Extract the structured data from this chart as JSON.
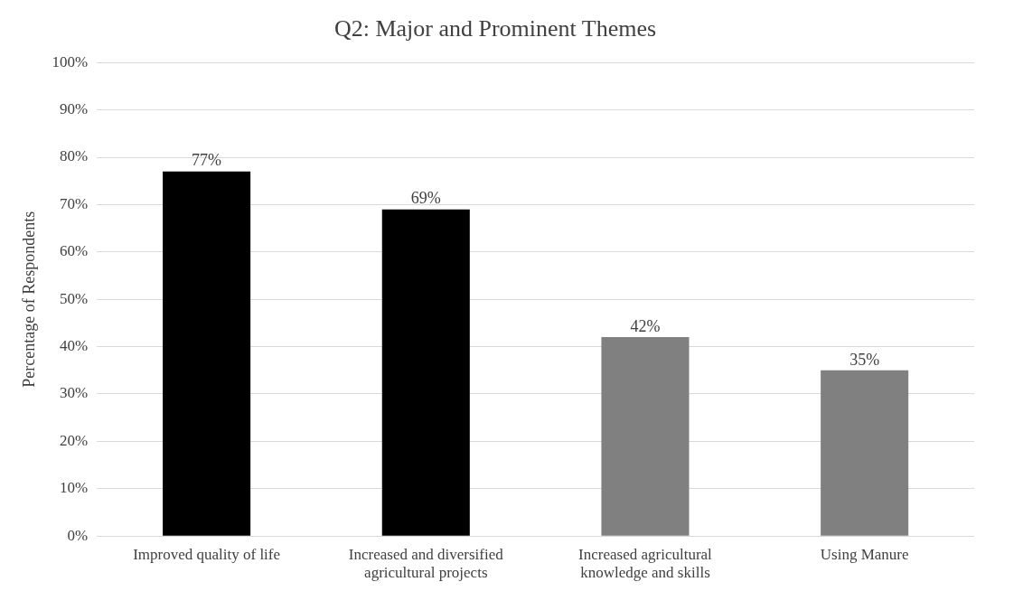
{
  "chart_data": {
    "type": "bar",
    "title": "Q2: Major and Prominent Themes",
    "ylabel": "Percentage of Respondents",
    "categories": [
      "Improved quality of life",
      "Increased and diversified agricultural projects",
      "Increased agricultural knowledge and skills",
      "Using Manure"
    ],
    "values": [
      77,
      69,
      42,
      35
    ],
    "colors": [
      "#000000",
      "#000000",
      "#808080",
      "#808080"
    ],
    "ylim": [
      0,
      100
    ],
    "yticks": [
      {
        "value": 0,
        "label": "0%"
      },
      {
        "value": 10,
        "label": "10%"
      },
      {
        "value": 20,
        "label": "20%"
      },
      {
        "value": 30,
        "label": "30%"
      },
      {
        "value": 40,
        "label": "40%"
      },
      {
        "value": 50,
        "label": "50%"
      },
      {
        "value": 60,
        "label": "60%"
      },
      {
        "value": 70,
        "label": "70%"
      },
      {
        "value": 80,
        "label": "80%"
      },
      {
        "value": 90,
        "label": "90%"
      },
      {
        "value": 100,
        "label": "100%"
      }
    ],
    "value_labels": [
      "77%",
      "69%",
      "42%",
      "35%"
    ],
    "grid": "y"
  }
}
